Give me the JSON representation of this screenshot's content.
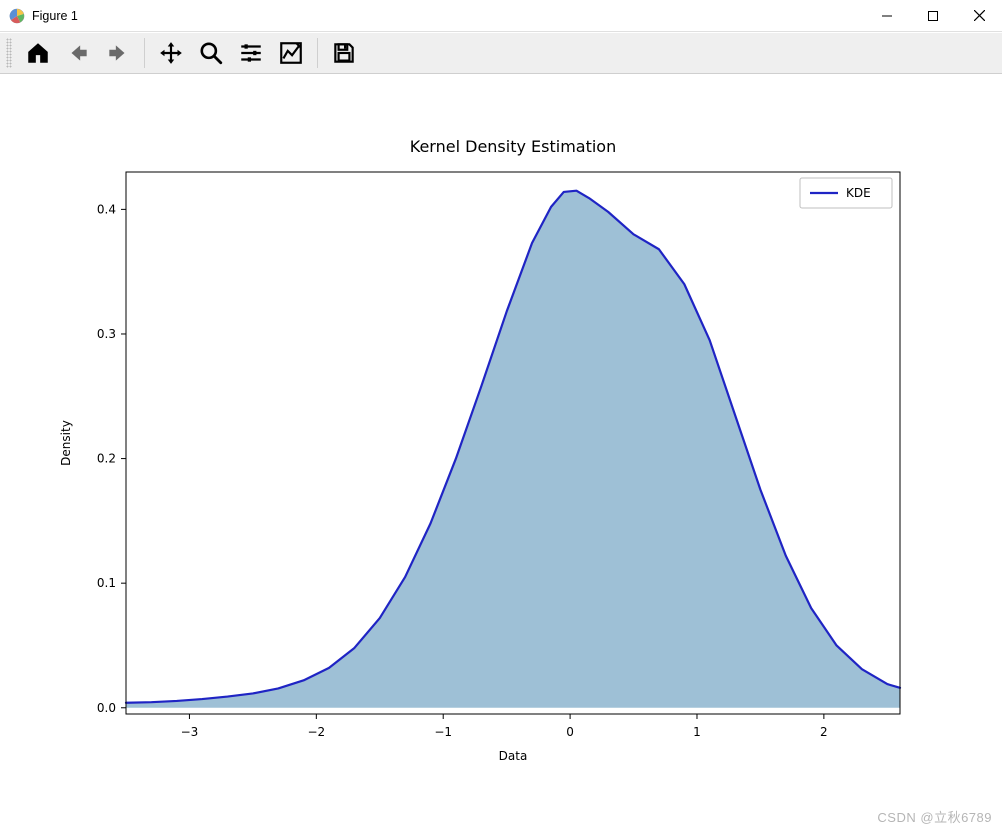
{
  "window": {
    "title": "Figure 1",
    "app_icon": "matplotlib-figure-icon",
    "controls": {
      "minimize": "minimize",
      "maximize": "maximize",
      "close": "close"
    }
  },
  "toolbar": {
    "buttons": [
      {
        "name": "home-icon"
      },
      {
        "name": "back-icon"
      },
      {
        "name": "forward-icon"
      },
      {
        "sep": true
      },
      {
        "name": "pan-icon"
      },
      {
        "name": "zoom-icon"
      },
      {
        "name": "subplots-config-icon"
      },
      {
        "name": "axes-edit-icon"
      },
      {
        "sep": true
      },
      {
        "name": "save-icon"
      }
    ]
  },
  "chart": {
    "type": "line-filled-kde",
    "title": "Kernel Density Estimation",
    "title_fontsize": 16,
    "xlabel": "Data",
    "ylabel": "Density",
    "label_fontsize": 12,
    "tick_fontsize": 12,
    "legend": {
      "label": "KDE",
      "position": "upper-right",
      "fontsize": 12
    },
    "xlim": [
      -3.5,
      2.6
    ],
    "xticks": [
      -3,
      -2,
      -1,
      0,
      1,
      2
    ],
    "ylim": [
      -0.005,
      0.43
    ],
    "yticks": [
      0.0,
      0.1,
      0.2,
      0.3,
      0.4
    ],
    "line_color": "#1f24c4",
    "line_width": 2.2,
    "fill_color": "#8db5cf",
    "fill_opacity": 0.85,
    "background_color": "#ffffff",
    "axis_color": "#000000",
    "tick_color": "#000000",
    "data": {
      "x": [
        -3.5,
        -3.3,
        -3.1,
        -2.9,
        -2.7,
        -2.5,
        -2.3,
        -2.1,
        -1.9,
        -1.7,
        -1.5,
        -1.3,
        -1.1,
        -0.9,
        -0.7,
        -0.5,
        -0.3,
        -0.15,
        -0.05,
        0.05,
        0.15,
        0.3,
        0.5,
        0.7,
        0.9,
        1.1,
        1.3,
        1.5,
        1.7,
        1.9,
        2.1,
        2.3,
        2.5,
        2.6
      ],
      "y": [
        0.004,
        0.0045,
        0.0055,
        0.007,
        0.009,
        0.0115,
        0.0155,
        0.022,
        0.032,
        0.048,
        0.072,
        0.105,
        0.148,
        0.2,
        0.258,
        0.318,
        0.373,
        0.402,
        0.414,
        0.415,
        0.409,
        0.398,
        0.38,
        0.368,
        0.34,
        0.295,
        0.235,
        0.175,
        0.122,
        0.08,
        0.05,
        0.031,
        0.019,
        0.016
      ]
    }
  },
  "watermark": "CSDN @立秋6789"
}
